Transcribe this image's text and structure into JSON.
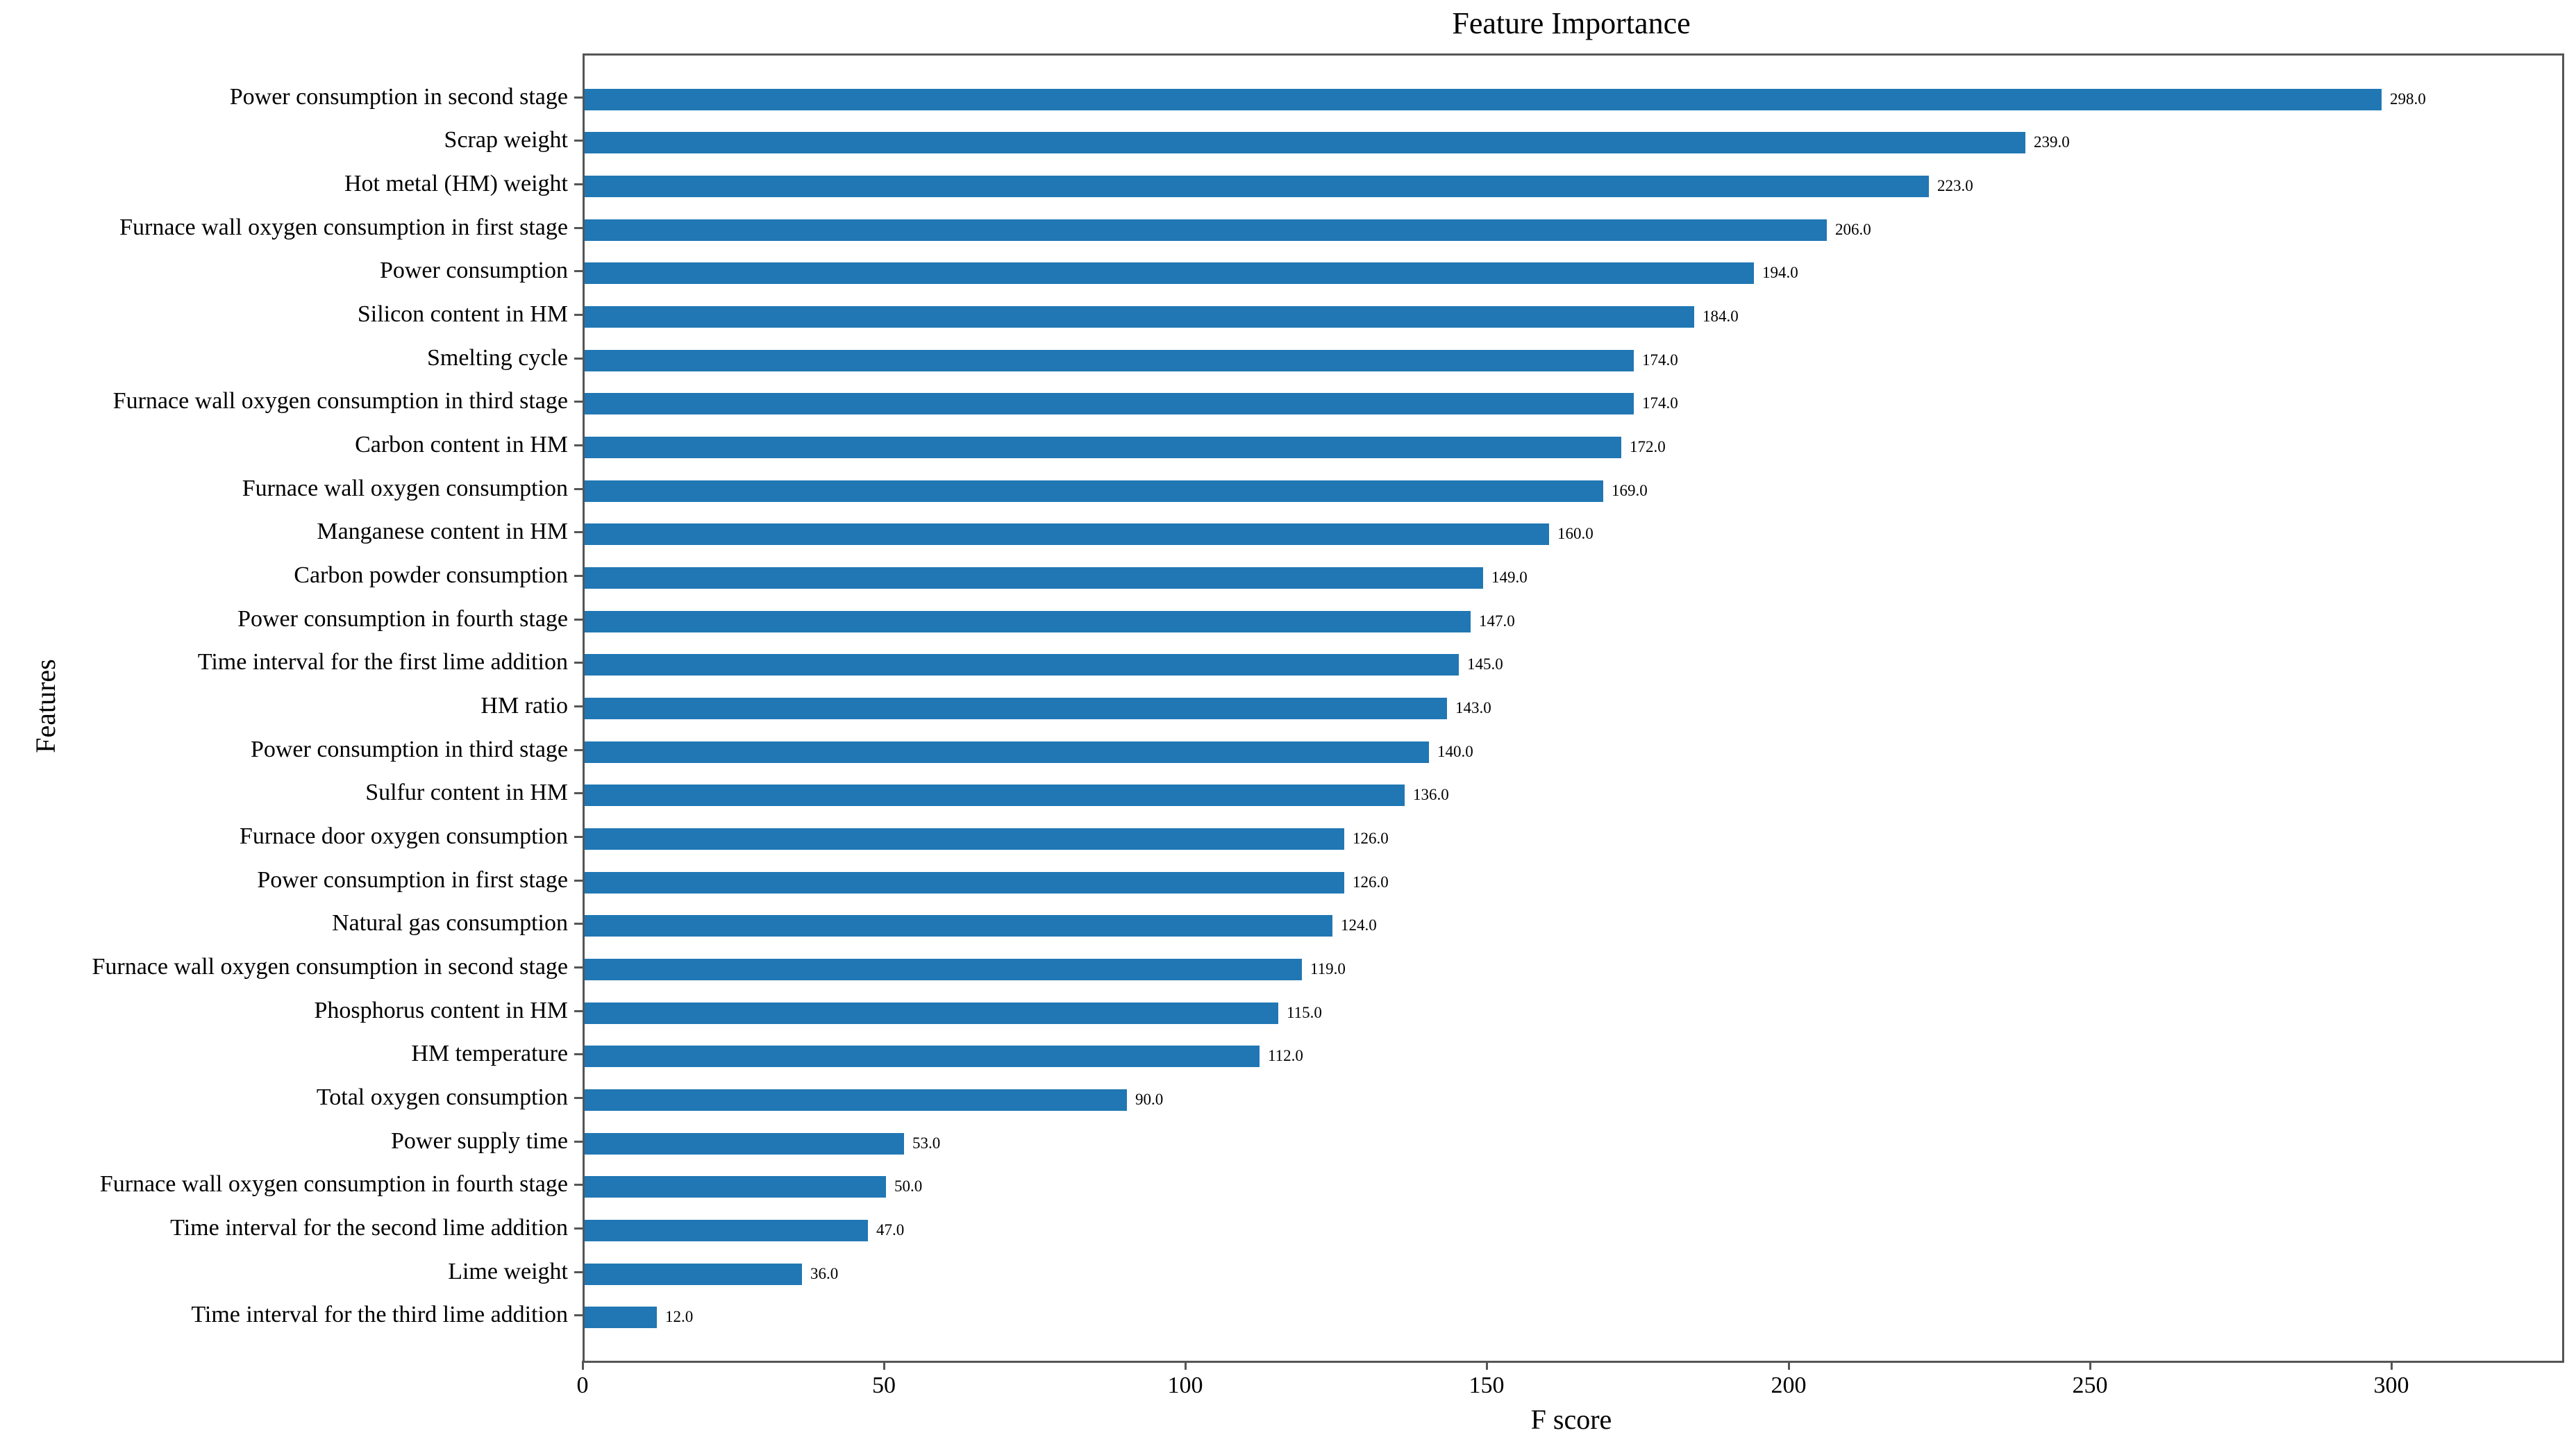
{
  "title": "Feature Importance",
  "chart_data": {
    "type": "bar",
    "orientation": "horizontal",
    "title": "Feature Importance",
    "xlabel": "F score",
    "ylabel": "Features",
    "xlim": [
      0,
      328
    ],
    "xticks": [
      0,
      50,
      100,
      150,
      200,
      250,
      300
    ],
    "grid": false,
    "legend": "none",
    "bar_color": "#2077b4",
    "spine_color": "#555555",
    "value_label_decimals": 1,
    "categories": [
      "Power consumption in second stage",
      "Scrap weight",
      "Hot metal (HM) weight",
      "Furnace wall oxygen consumption in first stage",
      "Power consumption",
      "Silicon content in HM",
      "Smelting cycle",
      "Furnace wall oxygen consumption in third stage",
      "Carbon content in HM",
      "Furnace wall oxygen consumption",
      "Manganese content in HM",
      "Carbon powder consumption",
      "Power consumption in fourth stage",
      "Time interval for the first lime addition",
      "HM ratio",
      "Power consumption in third stage",
      "Sulfur content in HM",
      "Furnace door oxygen consumption",
      "Power consumption in first stage",
      "Natural gas consumption",
      "Furnace wall oxygen consumption in second stage",
      "Phosphorus content in HM",
      "HM temperature",
      "Total oxygen consumption",
      "Power supply time",
      "Furnace wall oxygen consumption in fourth stage",
      "Time interval for the second lime addition",
      "Lime weight",
      "Time interval for the third lime addition"
    ],
    "values": [
      298,
      239,
      223,
      206,
      194,
      184,
      174,
      174,
      172,
      169,
      160,
      149,
      147,
      145,
      143,
      140,
      136,
      126,
      126,
      124,
      119,
      115,
      112,
      90,
      53,
      50,
      47,
      36,
      12
    ],
    "value_labels": [
      "298.0",
      "239.0",
      "223.0",
      "206.0",
      "194.0",
      "184.0",
      "174.0",
      "174.0",
      "172.0",
      "169.0",
      "160.0",
      "149.0",
      "147.0",
      "145.0",
      "143.0",
      "140.0",
      "136.0",
      "126.0",
      "126.0",
      "124.0",
      "119.0",
      "115.0",
      "112.0",
      "90.0",
      "53.0",
      "50.0",
      "47.0",
      "36.0",
      "12.0"
    ]
  }
}
